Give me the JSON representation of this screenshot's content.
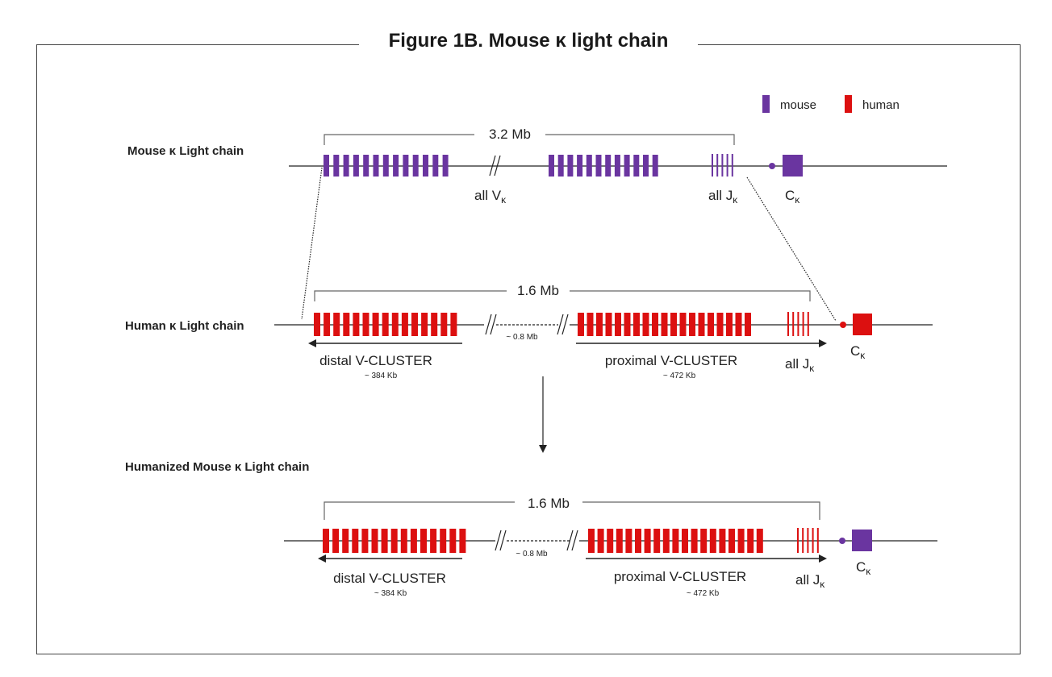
{
  "title": "Figure 1B. Mouse κ light chain",
  "colors": {
    "mouse": "#6a35a0",
    "human": "#dc1010",
    "line": "#222222"
  },
  "legend": [
    {
      "label": "mouse",
      "color_key": "mouse"
    },
    {
      "label": "human",
      "color_key": "human"
    }
  ],
  "rows": [
    {
      "id": "mouse",
      "name": "Mouse κ Light chain",
      "span_label": "3.2 Mb",
      "v_label_main": "all V",
      "v_label_sub": "κ",
      "j_label_main": "all J",
      "j_label_sub": "κ",
      "c_label_main": "C",
      "c_label_sub": "κ"
    },
    {
      "id": "human",
      "name": "Human κ Light chain",
      "span_label": "1.6 Mb",
      "gap_label": "~ 0.8 Mb",
      "distal_label": "distal V-CLUSTER",
      "distal_size": "~ 384 Kb",
      "proximal_label": "proximal V-CLUSTER",
      "proximal_size": "~ 472 Kb",
      "j_label_main": "all J",
      "j_label_sub": "κ",
      "c_label_main": "C",
      "c_label_sub": "κ"
    },
    {
      "id": "humanized",
      "name": "Humanized Mouse κ Light chain",
      "span_label": "1.6 Mb",
      "gap_label": "~ 0.8 Mb",
      "distal_label": "distal V-CLUSTER",
      "distal_size": "~ 384 Kb",
      "proximal_label": "proximal V-CLUSTER",
      "proximal_size": "~ 472 Kb",
      "j_label_main": "all J",
      "j_label_sub": "κ",
      "c_label_main": "C",
      "c_label_sub": "κ"
    }
  ]
}
